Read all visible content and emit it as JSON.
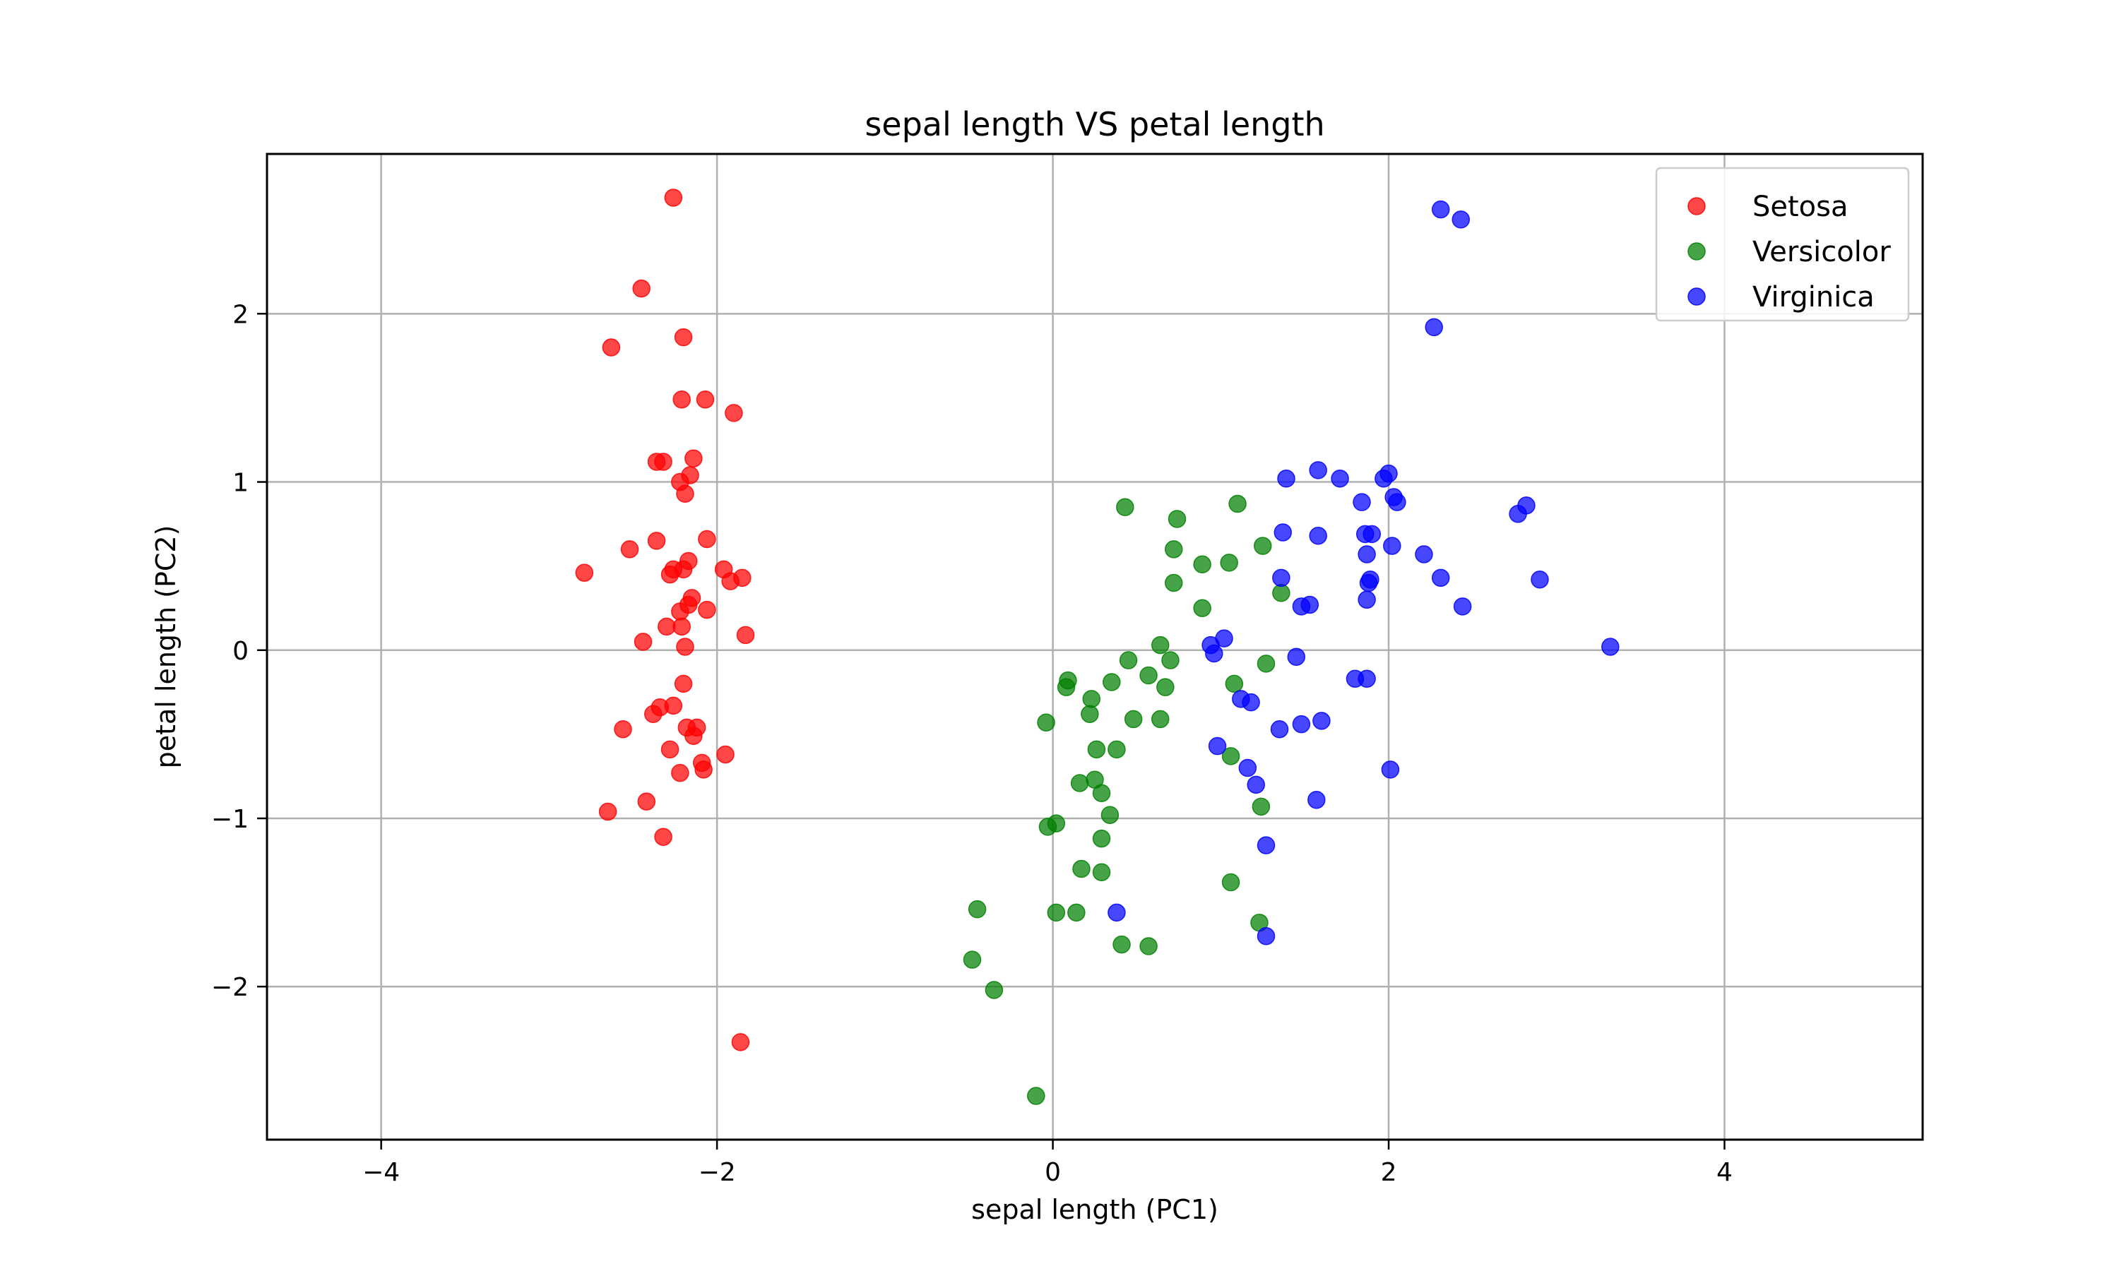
{
  "chart_data": {
    "type": "scatter",
    "title": "sepal length VS petal length",
    "xlabel": "sepal length (PC1)",
    "ylabel": "petal length (PC2)",
    "xlim": [
      -4.68,
      5.18
    ],
    "ylim": [
      -2.91,
      2.95
    ],
    "xticks": [
      -4,
      -2,
      0,
      2,
      4
    ],
    "yticks": [
      -2,
      -1,
      0,
      1,
      2
    ],
    "grid": true,
    "legend_position": "top-right",
    "series": [
      {
        "name": "Setosa",
        "color": "#ff0000",
        "points": [
          [
            -2.26,
            2.69
          ],
          [
            -2.45,
            2.15
          ],
          [
            -2.63,
            1.8
          ],
          [
            -2.2,
            1.86
          ],
          [
            -2.21,
            1.49
          ],
          [
            -2.07,
            1.49
          ],
          [
            -1.9,
            1.41
          ],
          [
            -2.36,
            1.12
          ],
          [
            -2.32,
            1.12
          ],
          [
            -2.14,
            1.14
          ],
          [
            -2.16,
            1.04
          ],
          [
            -2.22,
            1.0
          ],
          [
            -2.19,
            0.93
          ],
          [
            -2.36,
            0.65
          ],
          [
            -2.06,
            0.66
          ],
          [
            -2.52,
            0.6
          ],
          [
            -2.79,
            0.46
          ],
          [
            -2.17,
            0.53
          ],
          [
            -2.26,
            0.48
          ],
          [
            -2.2,
            0.48
          ],
          [
            -2.28,
            0.45
          ],
          [
            -1.96,
            0.48
          ],
          [
            -1.92,
            0.41
          ],
          [
            -1.85,
            0.43
          ],
          [
            -2.15,
            0.31
          ],
          [
            -2.17,
            0.27
          ],
          [
            -2.06,
            0.24
          ],
          [
            -2.22,
            0.23
          ],
          [
            -2.3,
            0.14
          ],
          [
            -2.21,
            0.14
          ],
          [
            -1.83,
            0.09
          ],
          [
            -2.44,
            0.05
          ],
          [
            -2.19,
            0.02
          ],
          [
            -2.2,
            -0.2
          ],
          [
            -2.26,
            -0.33
          ],
          [
            -2.34,
            -0.34
          ],
          [
            -2.38,
            -0.38
          ],
          [
            -2.18,
            -0.46
          ],
          [
            -2.12,
            -0.46
          ],
          [
            -2.14,
            -0.51
          ],
          [
            -2.56,
            -0.47
          ],
          [
            -2.28,
            -0.59
          ],
          [
            -2.09,
            -0.67
          ],
          [
            -2.08,
            -0.71
          ],
          [
            -2.22,
            -0.73
          ],
          [
            -1.95,
            -0.62
          ],
          [
            -2.42,
            -0.9
          ],
          [
            -2.65,
            -0.96
          ],
          [
            -2.32,
            -1.11
          ],
          [
            -1.86,
            -2.33
          ]
        ]
      },
      {
        "name": "Versicolor",
        "color": "#008000",
        "points": [
          [
            0.43,
            0.85
          ],
          [
            1.1,
            0.87
          ],
          [
            0.74,
            0.78
          ],
          [
            0.72,
            0.6
          ],
          [
            0.89,
            0.51
          ],
          [
            1.05,
            0.52
          ],
          [
            1.25,
            0.62
          ],
          [
            0.72,
            0.4
          ],
          [
            0.89,
            0.25
          ],
          [
            1.36,
            0.34
          ],
          [
            0.64,
            0.03
          ],
          [
            0.45,
            -0.06
          ],
          [
            0.7,
            -0.06
          ],
          [
            0.57,
            -0.15
          ],
          [
            0.67,
            -0.22
          ],
          [
            0.35,
            -0.19
          ],
          [
            1.27,
            -0.08
          ],
          [
            1.08,
            -0.2
          ],
          [
            0.09,
            -0.18
          ],
          [
            0.08,
            -0.22
          ],
          [
            0.23,
            -0.29
          ],
          [
            0.22,
            -0.38
          ],
          [
            0.48,
            -0.41
          ],
          [
            0.64,
            -0.41
          ],
          [
            -0.04,
            -0.43
          ],
          [
            0.26,
            -0.59
          ],
          [
            0.38,
            -0.59
          ],
          [
            1.06,
            -0.63
          ],
          [
            0.16,
            -0.79
          ],
          [
            0.25,
            -0.77
          ],
          [
            0.29,
            -0.85
          ],
          [
            0.34,
            -0.98
          ],
          [
            -0.03,
            -1.05
          ],
          [
            0.02,
            -1.03
          ],
          [
            0.29,
            -1.12
          ],
          [
            1.24,
            -0.93
          ],
          [
            0.17,
            -1.3
          ],
          [
            0.29,
            -1.32
          ],
          [
            1.06,
            -1.38
          ],
          [
            -0.45,
            -1.54
          ],
          [
            0.02,
            -1.56
          ],
          [
            0.14,
            -1.56
          ],
          [
            1.23,
            -1.62
          ],
          [
            0.41,
            -1.75
          ],
          [
            0.57,
            -1.76
          ],
          [
            -0.48,
            -1.84
          ],
          [
            -0.35,
            -2.02
          ],
          [
            -0.1,
            -2.65
          ]
        ]
      },
      {
        "name": "Virginica",
        "color": "#0000ff",
        "points": [
          [
            2.31,
            2.62
          ],
          [
            2.43,
            2.56
          ],
          [
            2.27,
            1.92
          ],
          [
            1.58,
            1.07
          ],
          [
            1.39,
            1.02
          ],
          [
            1.71,
            1.02
          ],
          [
            1.97,
            1.02
          ],
          [
            2.0,
            1.05
          ],
          [
            2.03,
            0.91
          ],
          [
            2.05,
            0.88
          ],
          [
            1.84,
            0.88
          ],
          [
            2.77,
            0.81
          ],
          [
            2.82,
            0.86
          ],
          [
            1.37,
            0.7
          ],
          [
            1.58,
            0.68
          ],
          [
            1.86,
            0.69
          ],
          [
            1.9,
            0.69
          ],
          [
            1.87,
            0.57
          ],
          [
            2.02,
            0.62
          ],
          [
            2.21,
            0.57
          ],
          [
            2.31,
            0.43
          ],
          [
            2.9,
            0.42
          ],
          [
            1.36,
            0.43
          ],
          [
            1.88,
            0.4
          ],
          [
            1.89,
            0.42
          ],
          [
            1.48,
            0.26
          ],
          [
            1.53,
            0.27
          ],
          [
            1.87,
            0.3
          ],
          [
            2.44,
            0.26
          ],
          [
            3.32,
            0.02
          ],
          [
            0.94,
            0.03
          ],
          [
            1.02,
            0.07
          ],
          [
            0.96,
            -0.02
          ],
          [
            1.45,
            -0.04
          ],
          [
            1.8,
            -0.17
          ],
          [
            1.87,
            -0.17
          ],
          [
            1.12,
            -0.29
          ],
          [
            1.18,
            -0.31
          ],
          [
            1.35,
            -0.47
          ],
          [
            1.48,
            -0.44
          ],
          [
            1.6,
            -0.42
          ],
          [
            0.98,
            -0.57
          ],
          [
            1.16,
            -0.7
          ],
          [
            1.21,
            -0.8
          ],
          [
            2.01,
            -0.71
          ],
          [
            1.57,
            -0.89
          ],
          [
            1.27,
            -1.16
          ],
          [
            0.38,
            -1.56
          ],
          [
            1.27,
            -1.7
          ]
        ]
      }
    ]
  }
}
